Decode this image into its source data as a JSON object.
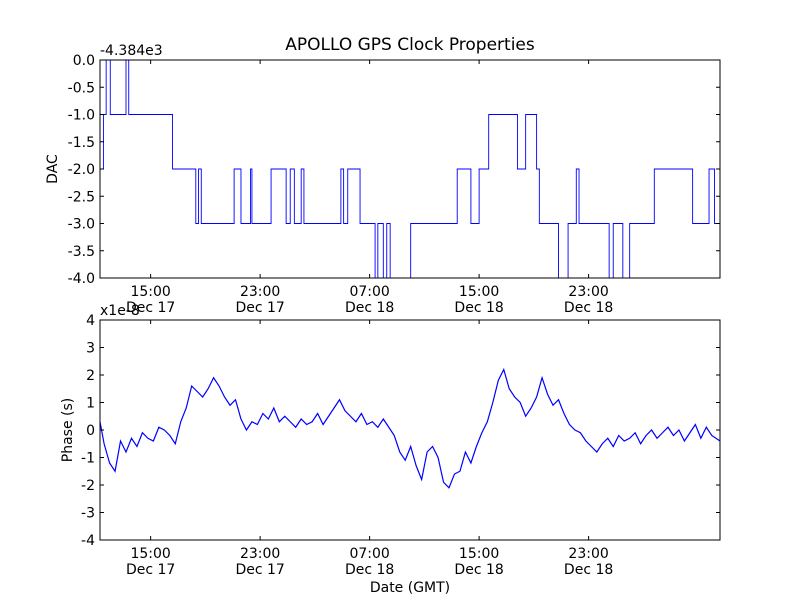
{
  "chart_data": [
    {
      "type": "line",
      "title": "APOLLO GPS Clock Properties",
      "xlabel": "",
      "ylabel": "DAC",
      "offset_text": "-4.384e3",
      "ylim": [
        -4.0,
        0.0
      ],
      "yticks": [
        "0.0",
        "-0.5",
        "-1.0",
        "-1.5",
        "-2.0",
        "-2.5",
        "-3.0",
        "-3.5",
        "-4.0"
      ],
      "xlim_hours": [
        11.3,
        56.6
      ],
      "xticks": [
        {
          "time": "15:00",
          "date": "Dec 17"
        },
        {
          "time": "23:00",
          "date": "Dec 17"
        },
        {
          "time": "07:00",
          "date": "Dec 18"
        },
        {
          "time": "15:00",
          "date": "Dec 18"
        },
        {
          "time": "23:00",
          "date": "Dec 18"
        }
      ],
      "series": [
        {
          "color": "#0000ff",
          "x_hours": [
            11.3,
            11.55,
            11.75,
            12.05,
            12.4,
            13.2,
            13.4,
            14.0,
            16.6,
            16.8,
            18.3,
            18.5,
            18.7,
            21.1,
            21.6,
            22.3,
            22.4,
            23.8,
            24.9,
            25.2,
            25.5,
            26.0,
            26.2,
            26.8,
            28.9,
            29.1,
            29.4,
            30.3,
            31.4,
            31.6,
            32.0,
            32.25,
            32.5,
            34.0,
            35.0,
            37.4,
            38.4,
            39.0,
            39.7,
            40.2,
            41.8,
            42.4,
            43.2,
            43.4,
            44.8,
            45.5,
            46.1,
            46.3,
            48.5,
            48.8,
            49.5,
            50.0,
            51.8,
            54.6,
            55.8,
            56.2,
            56.6
          ],
          "y": [
            -2.0,
            -1.0,
            0.0,
            -1.0,
            -1.0,
            0.0,
            -1.0,
            -1.0,
            -2.0,
            -2.0,
            -3.0,
            -2.0,
            -3.0,
            -2.0,
            -3.0,
            -2.0,
            -3.0,
            -2.0,
            -3.0,
            -2.0,
            -3.0,
            -2.0,
            -3.0,
            -3.0,
            -2.0,
            -3.0,
            -2.0,
            -3.0,
            -4.0,
            -3.0,
            -4.0,
            -3.0,
            -4.0,
            -3.0,
            -3.0,
            -2.0,
            -3.0,
            -2.0,
            -1.0,
            -1.0,
            -2.0,
            -1.0,
            -2.0,
            -3.0,
            -4.0,
            -3.0,
            -2.0,
            -3.0,
            -4.0,
            -3.0,
            -4.0,
            -3.0,
            -2.0,
            -3.0,
            -2.0,
            -3.0,
            -2.0
          ]
        }
      ]
    },
    {
      "type": "line",
      "title": "",
      "xlabel": "Date (GMT)",
      "ylabel": "Phase (s)",
      "offset_text": "x1e-8",
      "ylim": [
        -4,
        4
      ],
      "yticks": [
        "4",
        "3",
        "2",
        "1",
        "0",
        "-1",
        "-2",
        "-3",
        "-4"
      ],
      "xlim_hours": [
        11.3,
        56.6
      ],
      "xticks": [
        {
          "time": "15:00",
          "date": "Dec 17"
        },
        {
          "time": "23:00",
          "date": "Dec 17"
        },
        {
          "time": "07:00",
          "date": "Dec 18"
        },
        {
          "time": "15:00",
          "date": "Dec 18"
        },
        {
          "time": "23:00",
          "date": "Dec 18"
        }
      ],
      "series": [
        {
          "color": "#0000ff",
          "x_hours": [
            11.3,
            11.6,
            12.0,
            12.4,
            12.8,
            13.2,
            13.6,
            14.0,
            14.4,
            14.8,
            15.2,
            15.6,
            16.0,
            16.4,
            16.8,
            17.2,
            17.6,
            18.0,
            18.4,
            18.8,
            19.2,
            19.6,
            20.0,
            20.4,
            20.8,
            21.2,
            21.6,
            22.0,
            22.4,
            22.8,
            23.2,
            23.6,
            24.0,
            24.4,
            24.8,
            25.2,
            25.6,
            26.0,
            26.4,
            26.8,
            27.2,
            27.6,
            28.0,
            28.4,
            28.8,
            29.2,
            29.6,
            30.0,
            30.4,
            30.8,
            31.2,
            31.6,
            32.0,
            32.4,
            32.8,
            33.2,
            33.6,
            34.0,
            34.4,
            34.8,
            35.2,
            35.6,
            36.0,
            36.4,
            36.8,
            37.2,
            37.6,
            38.0,
            38.4,
            38.8,
            39.2,
            39.6,
            40.0,
            40.4,
            40.8,
            41.2,
            41.6,
            42.0,
            42.4,
            42.8,
            43.2,
            43.6,
            44.0,
            44.4,
            44.8,
            45.2,
            45.6,
            46.0,
            46.4,
            46.8,
            47.2,
            47.6,
            48.0,
            48.4,
            48.8,
            49.2,
            49.6,
            50.0,
            50.4,
            50.8,
            51.2,
            51.6,
            52.0,
            52.4,
            52.8,
            53.2,
            53.6,
            54.0,
            54.4,
            54.8,
            55.2,
            55.6,
            56.0,
            56.6
          ],
          "y": [
            0.3,
            -0.5,
            -1.2,
            -1.5,
            -0.4,
            -0.8,
            -0.3,
            -0.6,
            -0.1,
            -0.3,
            -0.4,
            0.1,
            0.0,
            -0.2,
            -0.5,
            0.3,
            0.8,
            1.6,
            1.4,
            1.2,
            1.5,
            1.9,
            1.6,
            1.2,
            0.9,
            1.1,
            0.4,
            0.0,
            0.3,
            0.2,
            0.6,
            0.4,
            0.8,
            0.3,
            0.5,
            0.3,
            0.1,
            0.4,
            0.2,
            0.3,
            0.6,
            0.2,
            0.5,
            0.8,
            1.1,
            0.7,
            0.5,
            0.3,
            0.6,
            0.2,
            0.3,
            0.1,
            0.4,
            0.1,
            -0.2,
            -0.8,
            -1.1,
            -0.6,
            -1.3,
            -1.8,
            -0.8,
            -0.6,
            -1.0,
            -1.9,
            -2.1,
            -1.6,
            -1.5,
            -0.8,
            -1.2,
            -0.6,
            -0.1,
            0.3,
            1.0,
            1.8,
            2.2,
            1.5,
            1.2,
            1.0,
            0.5,
            0.8,
            1.2,
            1.9,
            1.3,
            0.9,
            1.1,
            0.6,
            0.2,
            0.0,
            -0.1,
            -0.4,
            -0.6,
            -0.8,
            -0.5,
            -0.3,
            -0.6,
            -0.2,
            -0.4,
            -0.3,
            -0.1,
            -0.5,
            -0.2,
            0.0,
            -0.3,
            -0.1,
            0.1,
            -0.2,
            0.0,
            -0.4,
            -0.1,
            0.2,
            -0.3,
            0.1,
            -0.2,
            -0.4
          ]
        }
      ]
    }
  ]
}
